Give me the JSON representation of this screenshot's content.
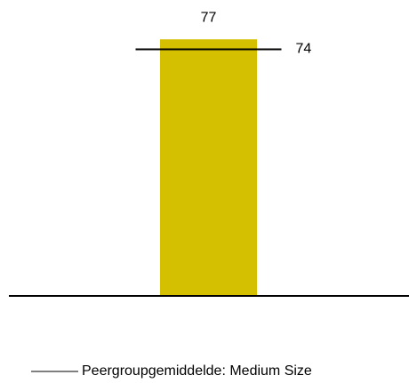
{
  "chart_data": {
    "type": "bar",
    "categories": [
      null
    ],
    "values": [
      77
    ],
    "color": "#d4c000",
    "ylim": [
      0,
      80
    ],
    "reference": {
      "name": "Peergroupgemiddelde: Medium Size",
      "value": 74,
      "color": "#000000"
    },
    "legend": "bottom"
  }
}
